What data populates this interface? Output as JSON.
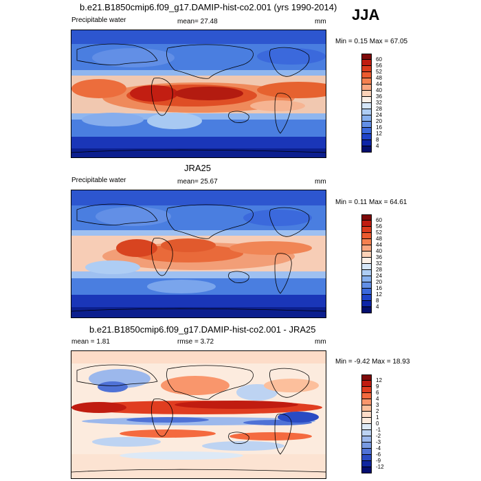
{
  "season": "JJA",
  "panels": [
    {
      "id": "model",
      "title": "b.e21.B1850cmip6.f09_g17.DAMIP-hist-co2.001 (yrs 1990-2014)",
      "left_label": "Precipitable water",
      "center_label": "mean=  27.48",
      "units": "mm",
      "minmax": "Min =   0.15 Max =  67.05",
      "colorbar_labels": [
        "60",
        "56",
        "52",
        "48",
        "44",
        "40",
        "36",
        "32",
        "28",
        "24",
        "20",
        "16",
        "12",
        "8",
        "4"
      ]
    },
    {
      "id": "obs",
      "title": "JRA25",
      "left_label": "Precipitable water",
      "center_label": "mean=  25.67",
      "units": "mm",
      "minmax": "Min =   0.11 Max =  64.61",
      "colorbar_labels": [
        "60",
        "56",
        "52",
        "48",
        "44",
        "40",
        "36",
        "32",
        "28",
        "24",
        "20",
        "16",
        "12",
        "8",
        "4"
      ]
    },
    {
      "id": "diff",
      "title": "b.e21.B1850cmip6.f09_g17.DAMIP-hist-co2.001 - JRA25",
      "left_label": "mean =   1.81",
      "center_label": "rmse =   3.72",
      "units": "mm",
      "minmax": "Min =  -9.42 Max =  18.93",
      "colorbar_labels": [
        "12",
        "9",
        "6",
        "4",
        "3",
        "2",
        "1",
        "0",
        "-1",
        "-2",
        "-3",
        "-4",
        "-6",
        "-9",
        "-12"
      ]
    }
  ],
  "colors": {
    "pw_scale": [
      "#7f0a0a",
      "#c01c10",
      "#db3a1c",
      "#ec5a2e",
      "#f4804f",
      "#f9a680",
      "#fcd2b8",
      "#fbf0e8",
      "#d6e6f8",
      "#aecdf4",
      "#87b0ee",
      "#628fe6",
      "#3b69dc",
      "#1f44c9",
      "#0d25a8",
      "#040f6e"
    ],
    "diff_scale": [
      "#7f0a0a",
      "#c01c10",
      "#e03d20",
      "#f46a3f",
      "#f9966c",
      "#fcbf9c",
      "#fddcc8",
      "#fcebde",
      "#dde9f6",
      "#bdd3f2",
      "#9cb8ec",
      "#789ae2",
      "#4f72d6",
      "#2a4bc3",
      "#0f26a0",
      "#040e70"
    ]
  }
}
